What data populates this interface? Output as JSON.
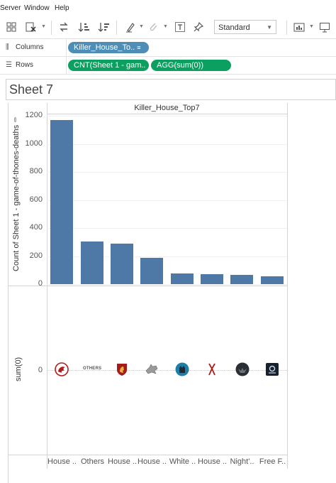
{
  "menubar": {
    "items": [
      "Server",
      "Window",
      "Help"
    ]
  },
  "toolbar": {
    "fit_select": "Standard",
    "icons": [
      "new-datasource-icon",
      "clear-sheet-icon",
      "swap-icon",
      "sort-ascending-icon",
      "sort-descending-icon",
      "highlight-icon",
      "group-icon",
      "label-text-icon",
      "pin-icon",
      "show-me-icon",
      "presentation-icon"
    ]
  },
  "shelves": {
    "columns": {
      "label": "Columns",
      "pills": [
        "Killer_House_To.."
      ]
    },
    "rows": {
      "label": "Rows",
      "pills": [
        "CNT(Sheet 1 - gam..",
        "AGG(sum(0))"
      ]
    }
  },
  "sheet": {
    "title": "Sheet 7"
  },
  "chart_data": {
    "type": "bar",
    "header": "Killer_House_Top7",
    "categories": [
      "House ..",
      "Others",
      "House ..",
      "House ..",
      "White ..",
      "House ..",
      "Night'..",
      "Free F.."
    ],
    "values": [
      1170,
      305,
      290,
      185,
      75,
      70,
      65,
      55
    ],
    "ylabel": "Count of Sheet 1 - game-of-thones-deaths",
    "ylim": [
      0,
      1220
    ],
    "yticks": [
      0,
      200,
      400,
      600,
      800,
      1000,
      1200
    ],
    "bar_color": "#4e79a7",
    "second_axis": {
      "label": "sum(0)",
      "tick": "0"
    },
    "sigil_icons": [
      "dragon-sigil-icon",
      "others-logo-icon",
      "lion-sigil-icon",
      "direwolf-sigil-icon",
      "white-walker-icon",
      "flayed-man-sigil-icon",
      "nights-watch-icon",
      "free-folk-icon"
    ],
    "others_logo_text": "OTHERS"
  }
}
